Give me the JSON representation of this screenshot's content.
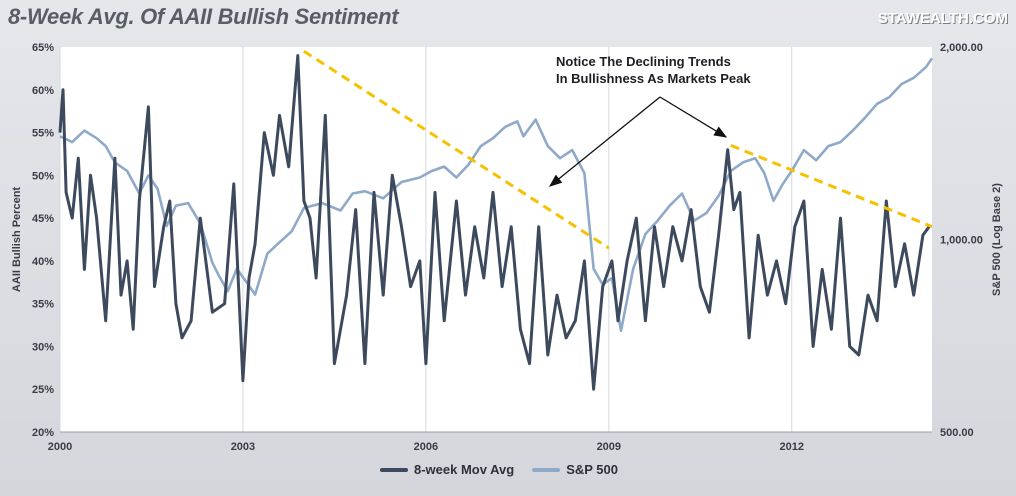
{
  "title": "8-Week Avg. Of AAII Bullish Sentiment",
  "brand": "STAWEALTH.COM",
  "annotation": [
    "Notice The Declining Trends",
    "In Bullishness As Markets Peak"
  ],
  "colors": {
    "aaii": "#3d4a5e",
    "sp500": "#8fa9c8",
    "trend": "#f5c100"
  },
  "chart_data": {
    "type": "line",
    "title": "8-Week Avg. Of AAII Bullish Sentiment",
    "xlabel": "",
    "ylabel": "AAII Bullish Percent",
    "y2label": "S&P 500 (Log Base 2)",
    "x_ticks": [
      "2000",
      "2003",
      "2006",
      "2009",
      "2012"
    ],
    "x_range": [
      2000,
      2014.3
    ],
    "y_ticks": [
      "20%",
      "25%",
      "30%",
      "35%",
      "40%",
      "45%",
      "50%",
      "55%",
      "60%",
      "65%"
    ],
    "ylim": [
      20,
      65
    ],
    "y2_ticks": [
      "500.00",
      "1,000.00",
      "2,000.00"
    ],
    "y2_scale": "log2",
    "y2lim": [
      500,
      2000
    ],
    "legend_position": "bottom",
    "grid": "vertical",
    "series": [
      {
        "name": "8-week Mov Avg",
        "axis": "left",
        "x": [
          2000.0,
          2000.05,
          2000.1,
          2000.2,
          2000.3,
          2000.4,
          2000.5,
          2000.6,
          2000.75,
          2000.9,
          2001.0,
          2001.1,
          2001.2,
          2001.3,
          2001.45,
          2001.55,
          2001.7,
          2001.8,
          2001.9,
          2002.0,
          2002.15,
          2002.3,
          2002.5,
          2002.7,
          2002.85,
          2003.0,
          2003.1,
          2003.2,
          2003.35,
          2003.5,
          2003.6,
          2003.75,
          2003.9,
          2004.0,
          2004.1,
          2004.2,
          2004.35,
          2004.5,
          2004.7,
          2004.85,
          2005.0,
          2005.15,
          2005.3,
          2005.45,
          2005.6,
          2005.75,
          2005.9,
          2006.0,
          2006.15,
          2006.3,
          2006.5,
          2006.65,
          2006.8,
          2006.95,
          2007.1,
          2007.25,
          2007.4,
          2007.55,
          2007.7,
          2007.85,
          2008.0,
          2008.15,
          2008.3,
          2008.45,
          2008.6,
          2008.75,
          2008.9,
          2009.05,
          2009.15,
          2009.3,
          2009.45,
          2009.6,
          2009.75,
          2009.9,
          2010.05,
          2010.2,
          2010.35,
          2010.5,
          2010.65,
          2010.8,
          2010.95,
          2011.05,
          2011.15,
          2011.3,
          2011.45,
          2011.6,
          2011.75,
          2011.9,
          2012.05,
          2012.2,
          2012.35,
          2012.5,
          2012.65,
          2012.8,
          2012.95,
          2013.1,
          2013.25,
          2013.4,
          2013.55,
          2013.7,
          2013.85,
          2014.0,
          2014.15,
          2014.25
        ],
        "values": [
          55,
          60,
          48,
          45,
          52,
          39,
          50,
          45,
          33,
          52,
          36,
          40,
          32,
          47,
          58,
          37,
          44,
          47,
          35,
          31,
          33,
          45,
          34,
          35,
          49,
          26,
          38,
          42,
          55,
          50,
          57,
          51,
          64,
          47,
          45,
          38,
          57,
          28,
          36,
          46,
          28,
          48,
          36,
          50,
          44,
          37,
          40,
          28,
          48,
          33,
          47,
          36,
          44,
          38,
          48,
          37,
          44,
          32,
          28,
          44,
          29,
          36,
          31,
          33,
          40,
          25,
          37,
          40,
          33,
          40,
          45,
          33,
          44,
          37,
          44,
          40,
          46,
          37,
          34,
          43,
          53,
          46,
          48,
          31,
          43,
          36,
          40,
          35,
          44,
          47,
          30,
          39,
          32,
          45,
          30,
          29,
          36,
          33,
          47,
          37,
          42,
          36,
          43,
          44
        ]
      },
      {
        "name": "S&P 500",
        "axis": "right",
        "x": [
          2000.0,
          2000.2,
          2000.4,
          2000.6,
          2000.75,
          2000.9,
          2001.1,
          2001.3,
          2001.45,
          2001.6,
          2001.75,
          2001.9,
          2002.1,
          2002.3,
          2002.5,
          2002.6,
          2002.75,
          2002.9,
          2003.05,
          2003.2,
          2003.4,
          2003.6,
          2003.8,
          2004.0,
          2004.3,
          2004.6,
          2004.8,
          2005.0,
          2005.3,
          2005.6,
          2005.9,
          2006.1,
          2006.3,
          2006.5,
          2006.7,
          2006.9,
          2007.1,
          2007.3,
          2007.5,
          2007.6,
          2007.8,
          2008.0,
          2008.2,
          2008.4,
          2008.6,
          2008.75,
          2008.9,
          2009.05,
          2009.2,
          2009.4,
          2009.6,
          2009.8,
          2010.0,
          2010.2,
          2010.4,
          2010.6,
          2010.8,
          2011.0,
          2011.2,
          2011.4,
          2011.55,
          2011.7,
          2011.85,
          2012.0,
          2012.2,
          2012.4,
          2012.6,
          2012.8,
          2013.0,
          2013.2,
          2013.4,
          2013.6,
          2013.8,
          2014.0,
          2014.2,
          2014.3
        ],
        "values": [
          1450,
          1420,
          1480,
          1440,
          1400,
          1320,
          1280,
          1180,
          1260,
          1200,
          1050,
          1130,
          1140,
          1060,
          920,
          880,
          830,
          900,
          860,
          820,
          950,
          990,
          1030,
          1120,
          1140,
          1110,
          1180,
          1190,
          1160,
          1230,
          1250,
          1280,
          1300,
          1250,
          1310,
          1400,
          1440,
          1500,
          1530,
          1450,
          1540,
          1400,
          1340,
          1380,
          1270,
          900,
          850,
          870,
          720,
          900,
          1020,
          1070,
          1130,
          1180,
          1070,
          1100,
          1170,
          1280,
          1320,
          1340,
          1270,
          1150,
          1220,
          1280,
          1380,
          1330,
          1400,
          1420,
          1480,
          1550,
          1630,
          1670,
          1750,
          1790,
          1860,
          1920
        ]
      }
    ],
    "trendlines": [
      {
        "x": [
          2004.0,
          2009.0
        ],
        "y": [
          64.5,
          41.5
        ]
      },
      {
        "x": [
          2011.0,
          2014.3
        ],
        "y": [
          53.5,
          44
        ]
      }
    ]
  },
  "legend": [
    {
      "label": "8-week Mov Avg",
      "color": "#3d4a5e"
    },
    {
      "label": "S&P 500",
      "color": "#8fa9c8"
    }
  ]
}
